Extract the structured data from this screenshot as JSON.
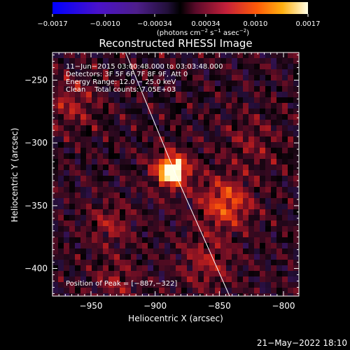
{
  "chart_data": {
    "type": "heatmap",
    "title": "Reconstructed RHESSI Image",
    "xlabel": "Heliocentric X (arcsec)",
    "ylabel": "Heliocentric Y (arcsec)",
    "xlim": [
      -980,
      -788
    ],
    "ylim": [
      -422,
      -228
    ],
    "x_ticks": [
      -950,
      -900,
      -850,
      -800
    ],
    "x_tick_labels": [
      "−950",
      "−900",
      "−850",
      "−800"
    ],
    "y_ticks": [
      -250,
      -300,
      -350,
      -400
    ],
    "y_tick_labels": [
      "−250",
      "−300",
      "−350",
      "−400"
    ],
    "colorbar": {
      "range": [
        -0.0017,
        0.0017
      ],
      "ticks": [
        -0.0017,
        -0.001,
        -0.00034,
        0.00034,
        0.001,
        0.0017
      ],
      "tick_labels": [
        "−0.0017",
        "−0.0010",
        "−0.00034",
        "0.00034",
        "0.0010",
        "0.0017"
      ],
      "unit_main": "(photons cm",
      "unit_exp1": "−2",
      "unit_mid": " s",
      "unit_exp2": "−1",
      "unit_mid2": " asec",
      "unit_exp3": "−2",
      "unit_end": ")"
    },
    "info_lines": [
      "11−Jun−2015 03:00:48.000 to 03:03:48.000",
      "Detectors: 3F 5F 6F 7F 8F 9F, Att 0",
      "Energy Range: 12.0 − 25.0 keV",
      "Clean    Total counts: 7.05E+03"
    ],
    "peak_label": "Position of Peak = [−887,−322]",
    "peak": [
      -887,
      -322
    ],
    "sources": [
      {
        "x": -887,
        "y": -322,
        "sigma": 6.5,
        "amp": 1.0
      },
      {
        "x": -887,
        "y": -322,
        "sigma": 13,
        "amp": 0.35
      },
      {
        "x": -845,
        "y": -348,
        "sigma": 14,
        "amp": 0.55
      },
      {
        "x": -965,
        "y": -268,
        "sigma": 14,
        "amp": 0.3
      },
      {
        "x": -935,
        "y": -365,
        "sigma": 12,
        "amp": 0.28
      },
      {
        "x": -860,
        "y": -395,
        "sigma": 15,
        "amp": 0.3
      },
      {
        "x": -930,
        "y": -410,
        "sigma": 12,
        "amp": 0.25
      },
      {
        "x": -825,
        "y": -300,
        "sigma": 15,
        "amp": 0.2
      }
    ],
    "limb_points": [
      [
        -923,
        -228
      ],
      [
        -882,
        -330
      ],
      [
        -842,
        -422
      ]
    ],
    "timestamp": "21−May−2022 18:10"
  }
}
